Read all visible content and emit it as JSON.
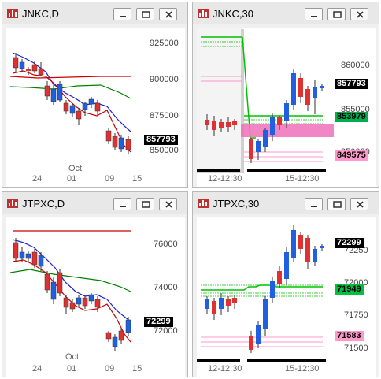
{
  "windows": [
    {
      "id": "jnkc-d",
      "title": "JNKC,D",
      "ticks": [
        "925000",
        "900000",
        "875000",
        "850000"
      ],
      "xlabels": [
        "24",
        "01",
        "09",
        "15"
      ],
      "month": "Oct",
      "last_tag": {
        "text": "857793",
        "bg": "#000000",
        "fg": "#ffffff"
      }
    },
    {
      "id": "jnkc-30",
      "title": "JNKC,30",
      "ticks": [
        "860000",
        "855000",
        "850000"
      ],
      "xlabels": [
        "12-12:30",
        "15-12:30"
      ],
      "tags": [
        {
          "text": "857793",
          "bg": "#000000",
          "fg": "#ffffff"
        },
        {
          "text": "853979",
          "bg": "#00b050",
          "fg": "#000000"
        },
        {
          "text": "849575",
          "bg": "#ff99cc",
          "fg": "#000000"
        }
      ]
    },
    {
      "id": "jtpxc-d",
      "title": "JTPXC,D",
      "ticks": [
        "76000",
        "74000",
        "72000"
      ],
      "xlabels": [
        "24",
        "01",
        "09",
        "15"
      ],
      "month": "Oct",
      "last_tag": {
        "text": "72299",
        "bg": "#000000",
        "fg": "#ffffff"
      }
    },
    {
      "id": "jtpxc-30",
      "title": "JTPXC,30",
      "ticks": [
        "72250",
        "72000",
        "71750",
        "71500"
      ],
      "xlabels": [
        "12-12:30",
        "15-12:30"
      ],
      "tags": [
        {
          "text": "72299",
          "bg": "#000000",
          "fg": "#ffffff"
        },
        {
          "text": "71949",
          "bg": "#00c040",
          "fg": "#000000"
        },
        {
          "text": "71583",
          "bg": "#ff99cc",
          "fg": "#000000"
        }
      ]
    }
  ],
  "colors": {
    "up_candle": "#2060e0",
    "down_candle": "#e03030",
    "ma_fast": "#2020d0",
    "ma_slow": "#008000",
    "ma_red": "#cc0000",
    "green_level": "#00c000",
    "pink_level": "#ff77bb"
  }
}
